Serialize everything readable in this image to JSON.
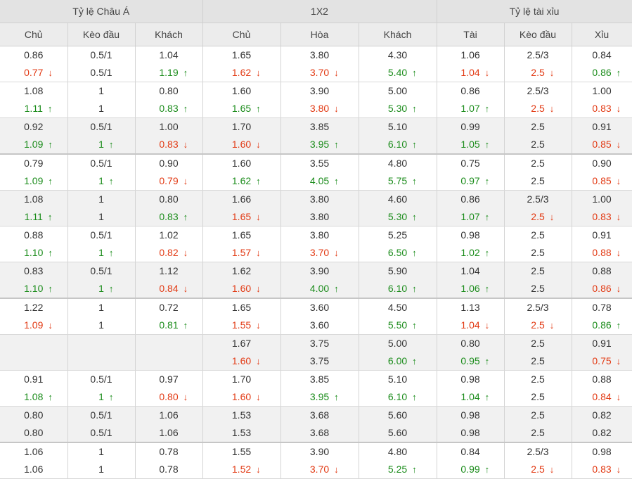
{
  "groups": [
    {
      "label": "Tỷ lệ Châu Á",
      "span": 3
    },
    {
      "label": "1X2",
      "span": 3
    },
    {
      "label": "Tỷ lệ tài xỉu",
      "span": 3
    }
  ],
  "columns": [
    "Chủ",
    "Kèo đầu",
    "Khách",
    "Chủ",
    "Hòa",
    "Khách",
    "Tài",
    "Kèo đầu",
    "Xỉu"
  ],
  "rows": [
    {
      "bg": "odd",
      "sep": false,
      "cells": [
        [
          {
            "v": "0.86",
            "d": "same"
          },
          {
            "v": "0.77",
            "d": "down"
          }
        ],
        [
          {
            "v": "0.5/1",
            "d": "same"
          },
          {
            "v": "0.5/1",
            "d": "same"
          }
        ],
        [
          {
            "v": "1.04",
            "d": "same"
          },
          {
            "v": "1.19",
            "d": "up"
          }
        ],
        [
          {
            "v": "1.65",
            "d": "same"
          },
          {
            "v": "1.62",
            "d": "down"
          }
        ],
        [
          {
            "v": "3.80",
            "d": "same"
          },
          {
            "v": "3.70",
            "d": "down"
          }
        ],
        [
          {
            "v": "4.30",
            "d": "same"
          },
          {
            "v": "5.40",
            "d": "up"
          }
        ],
        [
          {
            "v": "1.06",
            "d": "same"
          },
          {
            "v": "1.04",
            "d": "down"
          }
        ],
        [
          {
            "v": "2.5/3",
            "d": "same"
          },
          {
            "v": "2.5",
            "d": "down"
          }
        ],
        [
          {
            "v": "0.84",
            "d": "same"
          },
          {
            "v": "0.86",
            "d": "up"
          }
        ]
      ]
    },
    {
      "bg": "odd",
      "sep": false,
      "cells": [
        [
          {
            "v": "1.08",
            "d": "same"
          },
          {
            "v": "1.11",
            "d": "up"
          }
        ],
        [
          {
            "v": "1",
            "d": "same"
          },
          {
            "v": "1",
            "d": "same"
          }
        ],
        [
          {
            "v": "0.80",
            "d": "same"
          },
          {
            "v": "0.83",
            "d": "up"
          }
        ],
        [
          {
            "v": "1.60",
            "d": "same"
          },
          {
            "v": "1.65",
            "d": "up"
          }
        ],
        [
          {
            "v": "3.90",
            "d": "same"
          },
          {
            "v": "3.80",
            "d": "down"
          }
        ],
        [
          {
            "v": "5.00",
            "d": "same"
          },
          {
            "v": "5.30",
            "d": "up"
          }
        ],
        [
          {
            "v": "0.86",
            "d": "same"
          },
          {
            "v": "1.07",
            "d": "up"
          }
        ],
        [
          {
            "v": "2.5/3",
            "d": "same"
          },
          {
            "v": "2.5",
            "d": "down"
          }
        ],
        [
          {
            "v": "1.00",
            "d": "same"
          },
          {
            "v": "0.83",
            "d": "down"
          }
        ]
      ]
    },
    {
      "bg": "even",
      "sep": false,
      "cells": [
        [
          {
            "v": "0.92",
            "d": "same"
          },
          {
            "v": "1.09",
            "d": "up"
          }
        ],
        [
          {
            "v": "0.5/1",
            "d": "same"
          },
          {
            "v": "1",
            "d": "up"
          }
        ],
        [
          {
            "v": "1.00",
            "d": "same"
          },
          {
            "v": "0.83",
            "d": "down"
          }
        ],
        [
          {
            "v": "1.70",
            "d": "same"
          },
          {
            "v": "1.60",
            "d": "down"
          }
        ],
        [
          {
            "v": "3.85",
            "d": "same"
          },
          {
            "v": "3.95",
            "d": "up"
          }
        ],
        [
          {
            "v": "5.10",
            "d": "same"
          },
          {
            "v": "6.10",
            "d": "up"
          }
        ],
        [
          {
            "v": "0.99",
            "d": "same"
          },
          {
            "v": "1.05",
            "d": "up"
          }
        ],
        [
          {
            "v": "2.5",
            "d": "same"
          },
          {
            "v": "2.5",
            "d": "same"
          }
        ],
        [
          {
            "v": "0.91",
            "d": "same"
          },
          {
            "v": "0.85",
            "d": "down"
          }
        ]
      ]
    },
    {
      "bg": "odd",
      "sep": true,
      "cells": [
        [
          {
            "v": "0.79",
            "d": "same"
          },
          {
            "v": "1.09",
            "d": "up"
          }
        ],
        [
          {
            "v": "0.5/1",
            "d": "same"
          },
          {
            "v": "1",
            "d": "up"
          }
        ],
        [
          {
            "v": "0.90",
            "d": "same"
          },
          {
            "v": "0.79",
            "d": "down"
          }
        ],
        [
          {
            "v": "1.60",
            "d": "same"
          },
          {
            "v": "1.62",
            "d": "up"
          }
        ],
        [
          {
            "v": "3.55",
            "d": "same"
          },
          {
            "v": "4.05",
            "d": "up"
          }
        ],
        [
          {
            "v": "4.80",
            "d": "same"
          },
          {
            "v": "5.75",
            "d": "up"
          }
        ],
        [
          {
            "v": "0.75",
            "d": "same"
          },
          {
            "v": "0.97",
            "d": "up"
          }
        ],
        [
          {
            "v": "2.5",
            "d": "same"
          },
          {
            "v": "2.5",
            "d": "same"
          }
        ],
        [
          {
            "v": "0.90",
            "d": "same"
          },
          {
            "v": "0.85",
            "d": "down"
          }
        ]
      ]
    },
    {
      "bg": "even",
      "sep": false,
      "cells": [
        [
          {
            "v": "1.08",
            "d": "same"
          },
          {
            "v": "1.11",
            "d": "up"
          }
        ],
        [
          {
            "v": "1",
            "d": "same"
          },
          {
            "v": "1",
            "d": "same"
          }
        ],
        [
          {
            "v": "0.80",
            "d": "same"
          },
          {
            "v": "0.83",
            "d": "up"
          }
        ],
        [
          {
            "v": "1.66",
            "d": "same"
          },
          {
            "v": "1.65",
            "d": "down"
          }
        ],
        [
          {
            "v": "3.80",
            "d": "same"
          },
          {
            "v": "3.80",
            "d": "same"
          }
        ],
        [
          {
            "v": "4.60",
            "d": "same"
          },
          {
            "v": "5.30",
            "d": "up"
          }
        ],
        [
          {
            "v": "0.86",
            "d": "same"
          },
          {
            "v": "1.07",
            "d": "up"
          }
        ],
        [
          {
            "v": "2.5/3",
            "d": "same"
          },
          {
            "v": "2.5",
            "d": "down"
          }
        ],
        [
          {
            "v": "1.00",
            "d": "same"
          },
          {
            "v": "0.83",
            "d": "down"
          }
        ]
      ]
    },
    {
      "bg": "odd",
      "sep": false,
      "cells": [
        [
          {
            "v": "0.88",
            "d": "same"
          },
          {
            "v": "1.10",
            "d": "up"
          }
        ],
        [
          {
            "v": "0.5/1",
            "d": "same"
          },
          {
            "v": "1",
            "d": "up"
          }
        ],
        [
          {
            "v": "1.02",
            "d": "same"
          },
          {
            "v": "0.82",
            "d": "down"
          }
        ],
        [
          {
            "v": "1.65",
            "d": "same"
          },
          {
            "v": "1.57",
            "d": "down"
          }
        ],
        [
          {
            "v": "3.80",
            "d": "same"
          },
          {
            "v": "3.70",
            "d": "down"
          }
        ],
        [
          {
            "v": "5.25",
            "d": "same"
          },
          {
            "v": "6.50",
            "d": "up"
          }
        ],
        [
          {
            "v": "0.98",
            "d": "same"
          },
          {
            "v": "1.02",
            "d": "up"
          }
        ],
        [
          {
            "v": "2.5",
            "d": "same"
          },
          {
            "v": "2.5",
            "d": "same"
          }
        ],
        [
          {
            "v": "0.91",
            "d": "same"
          },
          {
            "v": "0.88",
            "d": "down"
          }
        ]
      ]
    },
    {
      "bg": "even",
      "sep": false,
      "cells": [
        [
          {
            "v": "0.83",
            "d": "same"
          },
          {
            "v": "1.10",
            "d": "up"
          }
        ],
        [
          {
            "v": "0.5/1",
            "d": "same"
          },
          {
            "v": "1",
            "d": "up"
          }
        ],
        [
          {
            "v": "1.12",
            "d": "same"
          },
          {
            "v": "0.84",
            "d": "down"
          }
        ],
        [
          {
            "v": "1.62",
            "d": "same"
          },
          {
            "v": "1.60",
            "d": "down"
          }
        ],
        [
          {
            "v": "3.90",
            "d": "same"
          },
          {
            "v": "4.00",
            "d": "up"
          }
        ],
        [
          {
            "v": "5.90",
            "d": "same"
          },
          {
            "v": "6.10",
            "d": "up"
          }
        ],
        [
          {
            "v": "1.04",
            "d": "same"
          },
          {
            "v": "1.06",
            "d": "up"
          }
        ],
        [
          {
            "v": "2.5",
            "d": "same"
          },
          {
            "v": "2.5",
            "d": "same"
          }
        ],
        [
          {
            "v": "0.88",
            "d": "same"
          },
          {
            "v": "0.86",
            "d": "down"
          }
        ]
      ]
    },
    {
      "bg": "odd",
      "sep": true,
      "cells": [
        [
          {
            "v": "1.22",
            "d": "same"
          },
          {
            "v": "1.09",
            "d": "down"
          }
        ],
        [
          {
            "v": "1",
            "d": "same"
          },
          {
            "v": "1",
            "d": "same"
          }
        ],
        [
          {
            "v": "0.72",
            "d": "same"
          },
          {
            "v": "0.81",
            "d": "up"
          }
        ],
        [
          {
            "v": "1.65",
            "d": "same"
          },
          {
            "v": "1.55",
            "d": "down"
          }
        ],
        [
          {
            "v": "3.60",
            "d": "same"
          },
          {
            "v": "3.60",
            "d": "same"
          }
        ],
        [
          {
            "v": "4.50",
            "d": "same"
          },
          {
            "v": "5.50",
            "d": "up"
          }
        ],
        [
          {
            "v": "1.13",
            "d": "same"
          },
          {
            "v": "1.04",
            "d": "down"
          }
        ],
        [
          {
            "v": "2.5/3",
            "d": "same"
          },
          {
            "v": "2.5",
            "d": "down"
          }
        ],
        [
          {
            "v": "0.78",
            "d": "same"
          },
          {
            "v": "0.86",
            "d": "up"
          }
        ]
      ]
    },
    {
      "bg": "even",
      "sep": false,
      "cells": [
        [],
        [],
        [],
        [
          {
            "v": "1.67",
            "d": "same"
          },
          {
            "v": "1.60",
            "d": "down"
          }
        ],
        [
          {
            "v": "3.75",
            "d": "same"
          },
          {
            "v": "3.75",
            "d": "same"
          }
        ],
        [
          {
            "v": "5.00",
            "d": "same"
          },
          {
            "v": "6.00",
            "d": "up"
          }
        ],
        [
          {
            "v": "0.80",
            "d": "same"
          },
          {
            "v": "0.95",
            "d": "up"
          }
        ],
        [
          {
            "v": "2.5",
            "d": "same"
          },
          {
            "v": "2.5",
            "d": "same"
          }
        ],
        [
          {
            "v": "0.91",
            "d": "same"
          },
          {
            "v": "0.75",
            "d": "down"
          }
        ]
      ]
    },
    {
      "bg": "odd",
      "sep": false,
      "cells": [
        [
          {
            "v": "0.91",
            "d": "same"
          },
          {
            "v": "1.08",
            "d": "up"
          }
        ],
        [
          {
            "v": "0.5/1",
            "d": "same"
          },
          {
            "v": "1",
            "d": "up"
          }
        ],
        [
          {
            "v": "0.97",
            "d": "same"
          },
          {
            "v": "0.80",
            "d": "down"
          }
        ],
        [
          {
            "v": "1.70",
            "d": "same"
          },
          {
            "v": "1.60",
            "d": "down"
          }
        ],
        [
          {
            "v": "3.85",
            "d": "same"
          },
          {
            "v": "3.95",
            "d": "up"
          }
        ],
        [
          {
            "v": "5.10",
            "d": "same"
          },
          {
            "v": "6.10",
            "d": "up"
          }
        ],
        [
          {
            "v": "0.98",
            "d": "same"
          },
          {
            "v": "1.04",
            "d": "up"
          }
        ],
        [
          {
            "v": "2.5",
            "d": "same"
          },
          {
            "v": "2.5",
            "d": "same"
          }
        ],
        [
          {
            "v": "0.88",
            "d": "same"
          },
          {
            "v": "0.84",
            "d": "down"
          }
        ]
      ]
    },
    {
      "bg": "even",
      "sep": false,
      "cells": [
        [
          {
            "v": "0.80",
            "d": "same"
          },
          {
            "v": "0.80",
            "d": "same"
          }
        ],
        [
          {
            "v": "0.5/1",
            "d": "same"
          },
          {
            "v": "0.5/1",
            "d": "same"
          }
        ],
        [
          {
            "v": "1.06",
            "d": "same"
          },
          {
            "v": "1.06",
            "d": "same"
          }
        ],
        [
          {
            "v": "1.53",
            "d": "same"
          },
          {
            "v": "1.53",
            "d": "same"
          }
        ],
        [
          {
            "v": "3.68",
            "d": "same"
          },
          {
            "v": "3.68",
            "d": "same"
          }
        ],
        [
          {
            "v": "5.60",
            "d": "same"
          },
          {
            "v": "5.60",
            "d": "same"
          }
        ],
        [
          {
            "v": "0.98",
            "d": "same"
          },
          {
            "v": "0.98",
            "d": "same"
          }
        ],
        [
          {
            "v": "2.5",
            "d": "same"
          },
          {
            "v": "2.5",
            "d": "same"
          }
        ],
        [
          {
            "v": "0.82",
            "d": "same"
          },
          {
            "v": "0.82",
            "d": "same"
          }
        ]
      ]
    },
    {
      "bg": "odd",
      "sep": true,
      "cells": [
        [
          {
            "v": "1.06",
            "d": "same"
          },
          {
            "v": "1.06",
            "d": "same"
          }
        ],
        [
          {
            "v": "1",
            "d": "same"
          },
          {
            "v": "1",
            "d": "same"
          }
        ],
        [
          {
            "v": "0.78",
            "d": "same"
          },
          {
            "v": "0.78",
            "d": "same"
          }
        ],
        [
          {
            "v": "1.55",
            "d": "same"
          },
          {
            "v": "1.52",
            "d": "down"
          }
        ],
        [
          {
            "v": "3.90",
            "d": "same"
          },
          {
            "v": "3.70",
            "d": "down"
          }
        ],
        [
          {
            "v": "4.80",
            "d": "same"
          },
          {
            "v": "5.25",
            "d": "up"
          }
        ],
        [
          {
            "v": "0.84",
            "d": "same"
          },
          {
            "v": "0.99",
            "d": "up"
          }
        ],
        [
          {
            "v": "2.5/3",
            "d": "same"
          },
          {
            "v": "2.5",
            "d": "down"
          }
        ],
        [
          {
            "v": "0.98",
            "d": "same"
          },
          {
            "v": "0.83",
            "d": "down"
          }
        ]
      ]
    }
  ],
  "icons": {
    "up": "arrow-up-icon",
    "down": "arrow-down-icon"
  },
  "colors": {
    "up": "#1b8c1b",
    "down": "#e23a14",
    "header": "#e3e3e3",
    "subheader": "#ececec",
    "even_row": "#f1f1f1"
  }
}
